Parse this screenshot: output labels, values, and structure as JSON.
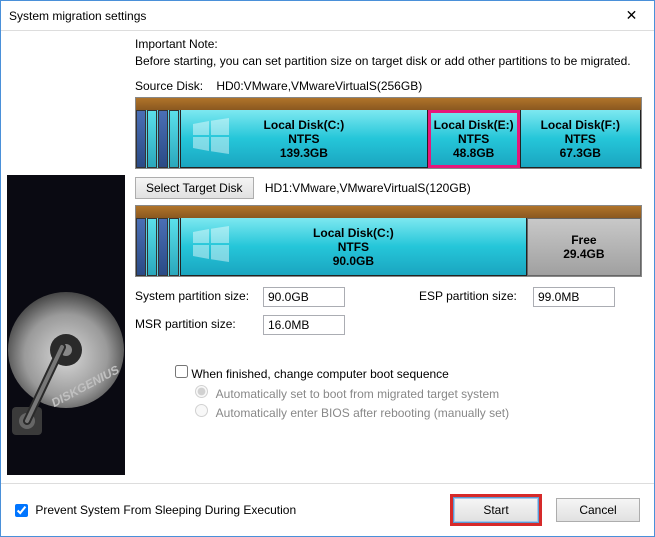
{
  "window": {
    "title": "System migration settings"
  },
  "note": {
    "title": "Important Note:",
    "text": "Before starting, you can set partition size on target disk or add other partitions to be migrated."
  },
  "source": {
    "label": "Source Disk:",
    "info": "HD0:VMware,VMwareVirtualS(256GB)",
    "partitions": [
      {
        "name": "Local Disk(C:)",
        "fs": "NTFS",
        "size": "139.3GB",
        "flex": 3.2,
        "winlogo": true
      },
      {
        "name": "Local Disk(E:)",
        "fs": "NTFS",
        "size": "48.8GB",
        "flex": 1.1,
        "selected": true
      },
      {
        "name": "Local Disk(F:)",
        "fs": "NTFS",
        "size": "67.3GB",
        "flex": 1.5
      }
    ]
  },
  "target": {
    "button": "Select Target Disk",
    "info": "HD1:VMware,VMwareVirtualS(120GB)",
    "partitions": [
      {
        "name": "Local Disk(C:)",
        "fs": "NTFS",
        "size": "90.0GB",
        "flex": 3.6,
        "winlogo": true
      }
    ],
    "free": {
      "label": "Free",
      "size": "29.4GB",
      "flex": 1.2
    }
  },
  "sizes": {
    "system_label": "System partition size:",
    "system_value": "90.0GB",
    "esp_label": "ESP partition size:",
    "esp_value": "99.0MB",
    "msr_label": "MSR partition size:",
    "msr_value": "16.0MB"
  },
  "options": {
    "finished": "When finished, change computer boot sequence",
    "radio1": "Automatically set to boot from migrated target system",
    "radio2": "Automatically enter BIOS after rebooting (manually set)"
  },
  "footer": {
    "prevent": "Prevent System From Sleeping During Execution",
    "start": "Start",
    "cancel": "Cancel"
  },
  "colors": {
    "header_bar": "#a0632a",
    "partition_grad_top": "#7de8f0",
    "partition_grad_bot": "#1aa5c0",
    "selected_outline": "#e6177a",
    "start_highlight": "#d62a2a"
  }
}
